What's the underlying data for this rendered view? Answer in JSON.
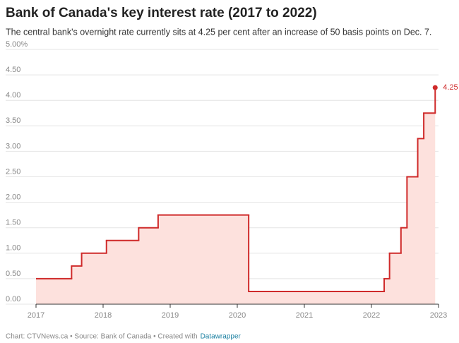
{
  "chart_data": {
    "type": "step",
    "title": "Bank of Canada's key interest rate (2017 to 2022)",
    "subtitle": "The central bank's overnight rate currently sits at 4.25 per cent after an increase of 50 basis points on Dec. 7.",
    "source": "Chart: CTVNews.ca • Source: Bank of Canada • Created with",
    "credit_link": "Datawrapper",
    "x": [
      2017.0,
      2017.53,
      2017.68,
      2018.05,
      2018.53,
      2018.82,
      2020.17,
      2022.19,
      2022.27,
      2022.44,
      2022.53,
      2022.69,
      2022.78,
      2022.95
    ],
    "series": [
      {
        "name": "Key interest rate",
        "color": "#cf2a2a",
        "fill": "#fde1dd",
        "values": [
          0.5,
          0.75,
          1.0,
          1.25,
          1.5,
          1.75,
          0.25,
          0.5,
          1.0,
          1.5,
          2.5,
          3.25,
          3.75,
          4.25
        ],
        "value_labels": [
          null,
          null,
          null,
          null,
          null,
          null,
          null,
          null,
          null,
          null,
          null,
          null,
          null,
          "4.25"
        ]
      }
    ],
    "xlim": [
      2017,
      2023
    ],
    "xticks": [
      2017,
      2018,
      2019,
      2020,
      2021,
      2022,
      2023
    ],
    "ylim": [
      0,
      5
    ],
    "yticks": [
      {
        "value": 0,
        "label": "0.00"
      },
      {
        "value": 0.5,
        "label": "0.50"
      },
      {
        "value": 1,
        "label": "1.00"
      },
      {
        "value": 1.5,
        "label": "1.50"
      },
      {
        "value": 2,
        "label": "2.00"
      },
      {
        "value": 2.5,
        "label": "2.50"
      },
      {
        "value": 3,
        "label": "3.00"
      },
      {
        "value": 3.5,
        "label": "3.50"
      },
      {
        "value": 4,
        "label": "4.00"
      },
      {
        "value": 4.5,
        "label": "4.50"
      },
      {
        "value": 5,
        "label": "5.00%"
      }
    ],
    "grid": true
  }
}
